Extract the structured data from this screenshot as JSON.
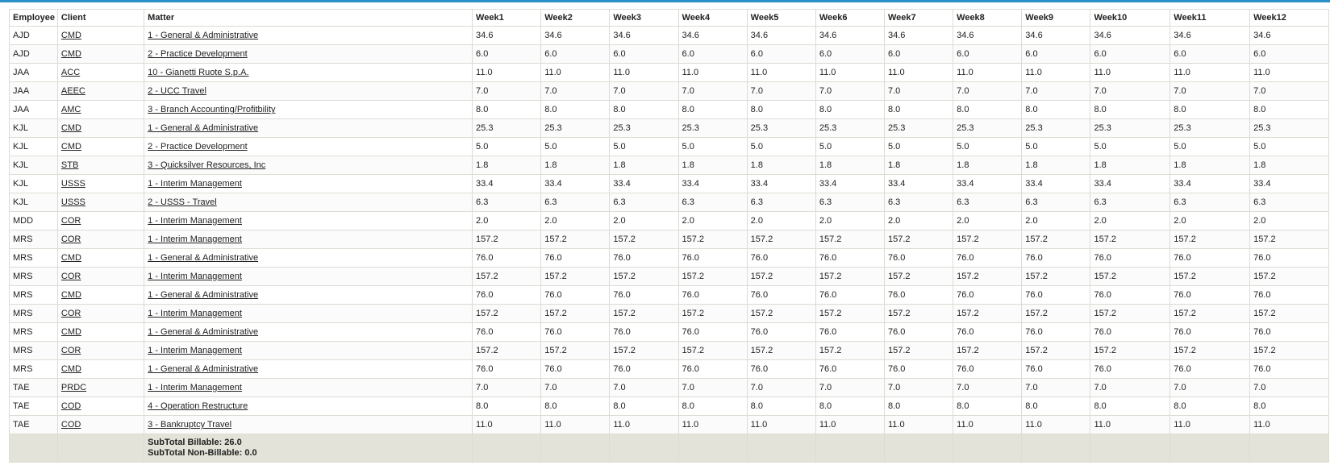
{
  "columns": [
    "Employee",
    "Client",
    "Matter",
    "Week1",
    "Week2",
    "Week3",
    "Week4",
    "Week5",
    "Week6",
    "Week7",
    "Week8",
    "Week9",
    "Week10",
    "Week11",
    "Week12"
  ],
  "rows": [
    {
      "employee": "AJD",
      "client": "CMD",
      "matter": "1 - General & Administrative",
      "value": "34.6"
    },
    {
      "employee": "AJD",
      "client": "CMD",
      "matter": "2 - Practice Development",
      "value": "6.0"
    },
    {
      "employee": "JAA",
      "client": "ACC",
      "matter": "10 - Gianetti Ruote S.p.A.",
      "value": "11.0"
    },
    {
      "employee": "JAA",
      "client": "AEEC",
      "matter": "2 - UCC Travel",
      "value": "7.0"
    },
    {
      "employee": "JAA",
      "client": "AMC",
      "matter": "3 - Branch Accounting/Profitbility",
      "value": "8.0"
    },
    {
      "employee": "KJL",
      "client": "CMD",
      "matter": "1 - General & Administrative",
      "value": "25.3"
    },
    {
      "employee": "KJL",
      "client": "CMD",
      "matter": "2 - Practice Development",
      "value": "5.0"
    },
    {
      "employee": "KJL",
      "client": "STB",
      "matter": "3 - Quicksilver Resources, Inc",
      "value": "1.8"
    },
    {
      "employee": "KJL",
      "client": "USSS",
      "matter": "1 - Interim Management",
      "value": "33.4"
    },
    {
      "employee": "KJL",
      "client": "USSS",
      "matter": "2 - USSS - Travel",
      "value": "6.3"
    },
    {
      "employee": "MDD",
      "client": "COR",
      "matter": "1 - Interim Management",
      "value": "2.0"
    },
    {
      "employee": "MRS",
      "client": "COR",
      "matter": "1 - Interim Management",
      "value": "157.2"
    },
    {
      "employee": "MRS",
      "client": "CMD",
      "matter": "1 - General & Administrative",
      "value": "76.0"
    },
    {
      "employee": "MRS",
      "client": "COR",
      "matter": "1 - Interim Management",
      "value": "157.2"
    },
    {
      "employee": "MRS",
      "client": "CMD",
      "matter": "1 - General & Administrative",
      "value": "76.0"
    },
    {
      "employee": "MRS",
      "client": "COR",
      "matter": "1 - Interim Management",
      "value": "157.2"
    },
    {
      "employee": "MRS",
      "client": "CMD",
      "matter": "1 - General & Administrative",
      "value": "76.0"
    },
    {
      "employee": "MRS",
      "client": "COR",
      "matter": "1 - Interim Management",
      "value": "157.2"
    },
    {
      "employee": "MRS",
      "client": "CMD",
      "matter": "1 - General & Administrative",
      "value": "76.0"
    },
    {
      "employee": "TAE",
      "client": "PRDC",
      "matter": "1 - Interim Management",
      "value": "7.0"
    },
    {
      "employee": "TAE",
      "client": "COD",
      "matter": "4 - Operation Restructure",
      "value": "8.0"
    },
    {
      "employee": "TAE",
      "client": "COD",
      "matter": "3 - Bankruptcy Travel",
      "value": "11.0"
    }
  ],
  "footer": {
    "subtotal_billable": "SubTotal Billable: 26.0",
    "subtotal_non_billable": "SubTotal Non-Billable: 0.0"
  },
  "colors": {
    "accent": "#2a8fc6",
    "footer_bg": "#e3e3d9",
    "grid": "#dcdcd4"
  }
}
